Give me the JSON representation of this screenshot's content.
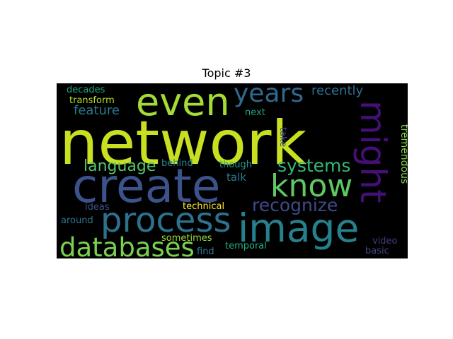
{
  "figure": {
    "title": "Topic #3"
  },
  "cloud": {
    "words": [
      {
        "text": "network",
        "color": "#c8e020"
      },
      {
        "text": "create",
        "color": "#3b528b"
      },
      {
        "text": "image",
        "color": "#26818e"
      },
      {
        "text": "process",
        "color": "#2c728e"
      },
      {
        "text": "even",
        "color": "#a5db36"
      },
      {
        "text": "might",
        "color": "#440f76"
      },
      {
        "text": "databases",
        "color": "#7ad151"
      },
      {
        "text": "know",
        "color": "#5ec962"
      },
      {
        "text": "years",
        "color": "#31688e"
      },
      {
        "text": "systems",
        "color": "#35b779"
      },
      {
        "text": "recognize",
        "color": "#3e4a89"
      },
      {
        "text": "language",
        "color": "#52c569"
      },
      {
        "text": "feature",
        "color": "#2a778e"
      },
      {
        "text": "recently",
        "color": "#2d708e"
      },
      {
        "text": "tremendous",
        "color": "#86d549"
      },
      {
        "text": "transform",
        "color": "#b5de2b"
      },
      {
        "text": "decades",
        "color": "#20a386"
      },
      {
        "text": "next",
        "color": "#1fa187"
      },
      {
        "text": "take",
        "color": "#3f4889"
      },
      {
        "text": "behind",
        "color": "#25848e"
      },
      {
        "text": "though",
        "color": "#1e9b8a"
      },
      {
        "text": "talk",
        "color": "#29798e"
      },
      {
        "text": "technical",
        "color": "#fde725"
      },
      {
        "text": "ideas",
        "color": "#3b528b"
      },
      {
        "text": "around",
        "color": "#2b758e"
      },
      {
        "text": "sometimes",
        "color": "#a0da39"
      },
      {
        "text": "temporal",
        "color": "#26ad81"
      },
      {
        "text": "find",
        "color": "#287d8e"
      },
      {
        "text": "video",
        "color": "#443a83"
      },
      {
        "text": "basic",
        "color": "#414487"
      }
    ]
  }
}
